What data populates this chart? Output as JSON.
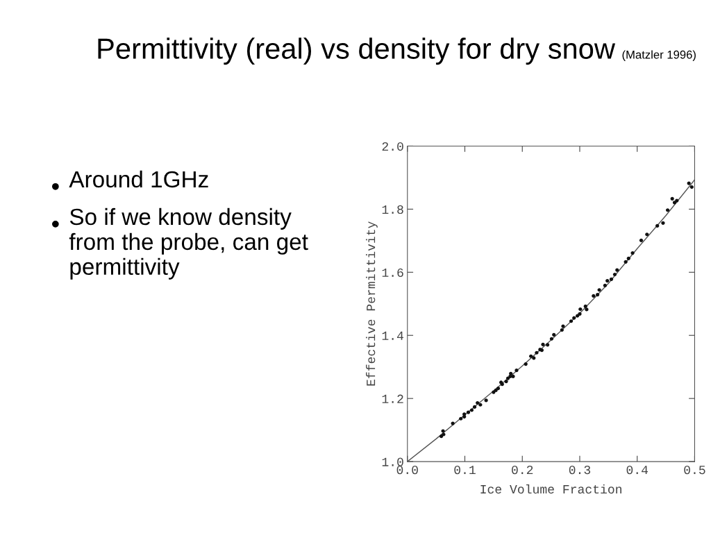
{
  "chart_data": {
    "type": "scatter",
    "title": "Permittivity (real) vs density for dry snow",
    "xlabel": "Ice Volume Fraction",
    "ylabel": "Effective Permittivity",
    "annotations": [
      "(Matzler 1996)",
      "Around 1GHz",
      "So if we know density from the probe, can get permittivity"
    ],
    "xlim": [
      0.0,
      0.5
    ],
    "ylim": [
      1.0,
      2.0
    ],
    "xticks": [
      {
        "value": 0.0,
        "label": "0.0"
      },
      0.1,
      0.2,
      0.3,
      0.4,
      0.5
    ],
    "yticks": [
      {
        "value": 1.0,
        "label": "1.0"
      },
      1.2,
      1.4,
      1.6,
      1.8,
      {
        "value": 2.0,
        "label": "2.0"
      }
    ],
    "grid": false,
    "legend": false,
    "marker": "circle",
    "series": [
      {
        "color": "#111111",
        "x": [
          0.059,
          0.062,
          0.063,
          0.079,
          0.093,
          0.099,
          0.099,
          0.106,
          0.112,
          0.117,
          0.122,
          0.127,
          0.137,
          0.15,
          0.154,
          0.158,
          0.163,
          0.165,
          0.172,
          0.175,
          0.179,
          0.18,
          0.184,
          0.19,
          0.206,
          0.215,
          0.22,
          0.225,
          0.231,
          0.234,
          0.236,
          0.244,
          0.251,
          0.255,
          0.269,
          0.271,
          0.285,
          0.29,
          0.296,
          0.3,
          0.301,
          0.31,
          0.312,
          0.324,
          0.331,
          0.334,
          0.344,
          0.348,
          0.355,
          0.361,
          0.365,
          0.38,
          0.385,
          0.392,
          0.407,
          0.417,
          0.435,
          0.445,
          0.453,
          0.461,
          0.465,
          0.469,
          0.49,
          0.495
        ],
        "values": [
          1.08,
          1.097,
          1.086,
          1.121,
          1.136,
          1.142,
          1.15,
          1.156,
          1.163,
          1.173,
          1.186,
          1.18,
          1.194,
          1.22,
          1.226,
          1.232,
          1.251,
          1.245,
          1.254,
          1.264,
          1.27,
          1.279,
          1.27,
          1.289,
          1.309,
          1.334,
          1.328,
          1.345,
          1.355,
          1.353,
          1.371,
          1.37,
          1.389,
          1.402,
          1.417,
          1.429,
          1.445,
          1.455,
          1.462,
          1.468,
          1.483,
          1.492,
          1.482,
          1.525,
          1.529,
          1.544,
          1.558,
          1.573,
          1.578,
          1.593,
          1.607,
          1.633,
          1.644,
          1.661,
          1.701,
          1.72,
          1.747,
          1.756,
          1.797,
          1.833,
          1.821,
          1.827,
          1.882,
          1.87
        ]
      },
      {
        "type": "line",
        "color": "#555555",
        "line_style": "solid",
        "marker": "none",
        "x": [
          0.0,
          0.05,
          0.1,
          0.15,
          0.2,
          0.25,
          0.3,
          0.35,
          0.4,
          0.45,
          0.5
        ],
        "values": [
          1.0,
          1.072,
          1.148,
          1.224,
          1.303,
          1.385,
          1.47,
          1.565,
          1.675,
          1.78,
          1.893
        ]
      }
    ]
  }
}
